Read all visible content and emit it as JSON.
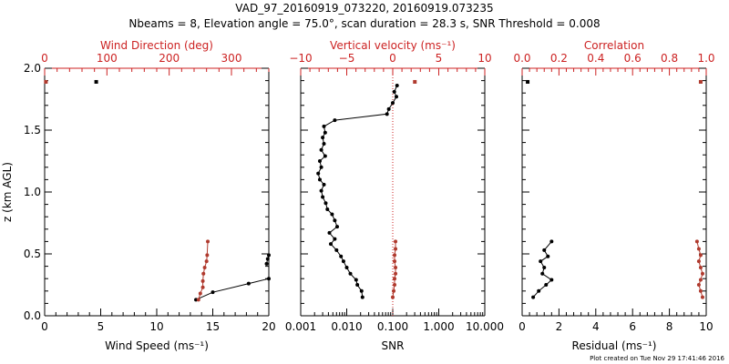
{
  "header": {
    "title_line1": "VAD_97_20160919_073220, 20160919.073235",
    "title_line2": "Nbeams = 8, Elevation angle = 75.0°, scan duration = 28.3 s, SNR Threshold = 0.008"
  },
  "footer": {
    "plot_created": "Plot created on Tue Nov 29 17:41:46 2016"
  },
  "colors": {
    "black_series": "#000000",
    "red_series": "#b03a2e",
    "red_axis": "#cc2222",
    "frame": "#000000"
  },
  "chart_data": [
    {
      "type": "scatter",
      "panel": "wind",
      "ylabel": "z (km AGL)",
      "ylim": [
        0,
        2
      ],
      "yticks": [
        "0.0",
        "0.5",
        "1.0",
        "1.5",
        "2.0"
      ],
      "xlabel": "Wind Speed (ms⁻¹)",
      "xlim": [
        0,
        20
      ],
      "xticks": [
        "0",
        "5",
        "10",
        "15",
        "20"
      ],
      "top_xlabel": "Wind Direction (deg)",
      "top_xlim": [
        0,
        360
      ],
      "top_xticks": [
        "0",
        "100",
        "200",
        "300"
      ],
      "series": [
        {
          "axis": "bottom",
          "color": "black",
          "x": [
            13.5,
            15.0,
            18.2,
            20.0
          ],
          "y": [
            0.13,
            0.19,
            0.26,
            0.3
          ],
          "extra_x": [
            19.8,
            19.9,
            20.0
          ],
          "extra_y": [
            0.42,
            0.46,
            0.49
          ],
          "isolated": {
            "x": 4.6,
            "y": 1.89
          }
        },
        {
          "axis": "top",
          "color": "red",
          "x": [
            247,
            250,
            254,
            254,
            255,
            257,
            260,
            261,
            262
          ],
          "y": [
            0.13,
            0.18,
            0.23,
            0.28,
            0.34,
            0.39,
            0.44,
            0.49,
            0.6
          ],
          "isolated": {
            "x": 2,
            "y": 1.89
          }
        }
      ]
    },
    {
      "type": "line",
      "panel": "snr",
      "ylim": [
        0,
        2
      ],
      "xlabel": "SNR",
      "xscale": "log",
      "xlim": [
        0.001,
        10
      ],
      "xticks": [
        "0.001",
        "0.010",
        "0.100",
        "1.000",
        "10.000"
      ],
      "top_xlabel": "Vertical velocity (ms⁻¹)",
      "top_xlim": [
        -10,
        10
      ],
      "top_xticks": [
        "−10",
        "−5",
        "0",
        "5",
        "10"
      ],
      "series": [
        {
          "axis": "bottom",
          "color": "black",
          "x": [
            0.022,
            0.021,
            0.017,
            0.016,
            0.012,
            0.01,
            0.0085,
            0.0075,
            0.006,
            0.0045,
            0.0055,
            0.0042,
            0.0062,
            0.0055,
            0.0048,
            0.0038,
            0.0035,
            0.003,
            0.0028,
            0.0032,
            0.0026,
            0.0024,
            0.0028,
            0.0026,
            0.0034,
            0.0028,
            0.0032,
            0.003,
            0.0034,
            0.0032,
            0.0055,
            0.075,
            0.082,
            0.1,
            0.12,
            0.108,
            0.124
          ],
          "y": [
            0.15,
            0.2,
            0.25,
            0.29,
            0.34,
            0.39,
            0.44,
            0.48,
            0.53,
            0.58,
            0.62,
            0.67,
            0.72,
            0.77,
            0.82,
            0.86,
            0.91,
            0.96,
            1.01,
            1.06,
            1.1,
            1.15,
            1.2,
            1.25,
            1.29,
            1.34,
            1.39,
            1.44,
            1.48,
            1.53,
            1.58,
            1.63,
            1.67,
            1.72,
            1.77,
            1.81,
            1.86
          ]
        },
        {
          "axis": "top",
          "color": "red",
          "x": [
            0.0,
            0.1,
            0.2,
            0.2,
            0.3,
            0.3,
            0.2,
            0.2,
            0.3,
            0.3
          ],
          "y": [
            0.15,
            0.2,
            0.25,
            0.3,
            0.34,
            0.39,
            0.44,
            0.49,
            0.54,
            0.6
          ],
          "isolated": {
            "x": 2.4,
            "y": 1.89
          }
        }
      ],
      "zero_line_top_x": 0
    },
    {
      "type": "line",
      "panel": "residual",
      "ylim": [
        0,
        2
      ],
      "xlabel": "Residual (ms⁻¹)",
      "xlim": [
        0,
        10
      ],
      "xticks": [
        "0",
        "2",
        "4",
        "6",
        "8",
        "10"
      ],
      "top_xlabel": "Correlation",
      "top_xlim": [
        0,
        1
      ],
      "top_xticks": [
        "0.0",
        "0.2",
        "0.4",
        "0.6",
        "0.8",
        "1.0"
      ],
      "series": [
        {
          "axis": "bottom",
          "color": "black",
          "x": [
            0.6,
            0.9,
            1.3,
            1.6,
            1.1,
            1.2,
            1.0,
            1.4,
            1.2,
            1.6
          ],
          "y": [
            0.15,
            0.2,
            0.25,
            0.29,
            0.34,
            0.39,
            0.44,
            0.48,
            0.53,
            0.6
          ],
          "isolated": {
            "x": 0.3,
            "y": 1.89
          }
        },
        {
          "axis": "top",
          "color": "red",
          "x": [
            0.98,
            0.97,
            0.96,
            0.97,
            0.98,
            0.97,
            0.96,
            0.97,
            0.96,
            0.95
          ],
          "y": [
            0.15,
            0.2,
            0.25,
            0.29,
            0.34,
            0.39,
            0.44,
            0.49,
            0.54,
            0.6
          ],
          "isolated": {
            "x": 0.97,
            "y": 1.89
          }
        }
      ]
    }
  ]
}
